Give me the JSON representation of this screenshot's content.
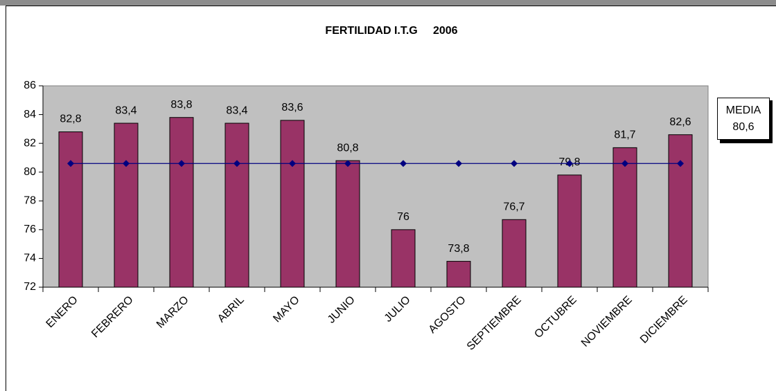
{
  "chart_data": {
    "type": "bar",
    "title": "FERTILIDAD I.T.G     2006",
    "categories": [
      "ENERO",
      "FEBRERO",
      "MARZO",
      "ABRIL",
      "MAYO",
      "JUNIO",
      "JULIO",
      "AGOSTO",
      "SEPTIEMBRE",
      "OCTUBRE",
      "NOVIEMBRE",
      "DICIEMBRE"
    ],
    "values": [
      82.8,
      83.4,
      83.8,
      83.4,
      83.6,
      80.8,
      76,
      73.8,
      76.7,
      79.8,
      81.7,
      82.6
    ],
    "value_labels": [
      "82,8",
      "83,4",
      "83,8",
      "83,4",
      "83,6",
      "80,8",
      "76",
      "73,8",
      "76,7",
      "79,8",
      "81,7",
      "82,6"
    ],
    "color": "#993366",
    "mean": {
      "name": "MEDIA",
      "value": 80.6,
      "value_label": "80,6",
      "color": "#000080"
    },
    "ylim": [
      72,
      86
    ],
    "yticks": [
      72,
      74,
      76,
      78,
      80,
      82,
      84,
      86
    ],
    "grid": false
  }
}
